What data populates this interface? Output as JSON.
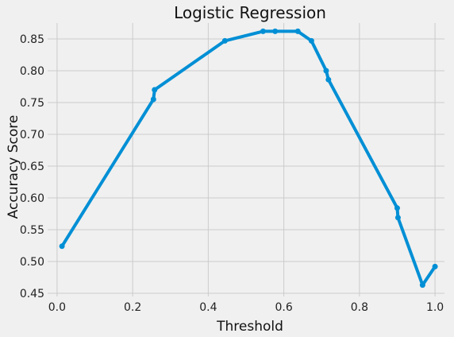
{
  "chart_data": {
    "type": "line",
    "title": "Logistic Regression",
    "xlabel": "Threshold",
    "ylabel": "Accuracy Score",
    "xlim": [
      -0.025,
      1.025
    ],
    "ylim": [
      0.445,
      0.875
    ],
    "xticks": [
      0.0,
      0.2,
      0.4,
      0.6,
      0.8,
      1.0
    ],
    "xtick_labels": [
      "0.0",
      "0.2",
      "0.4",
      "0.6",
      "0.8",
      "1.0"
    ],
    "yticks": [
      0.45,
      0.5,
      0.55,
      0.6,
      0.65,
      0.7,
      0.75,
      0.8,
      0.85
    ],
    "ytick_labels": [
      "0.45",
      "0.50",
      "0.55",
      "0.60",
      "0.65",
      "0.70",
      "0.75",
      "0.80",
      "0.85"
    ],
    "grid": true,
    "color": "#008fd5",
    "series": [
      {
        "x": [
          0.013,
          0.255,
          0.258,
          0.444,
          0.545,
          0.577,
          0.637,
          0.673,
          0.712,
          0.718,
          0.9,
          0.902,
          0.967,
          1.0
        ],
        "y": [
          0.524,
          0.755,
          0.77,
          0.847,
          0.862,
          0.862,
          0.862,
          0.847,
          0.8,
          0.786,
          0.584,
          0.569,
          0.463,
          0.492
        ]
      }
    ]
  }
}
